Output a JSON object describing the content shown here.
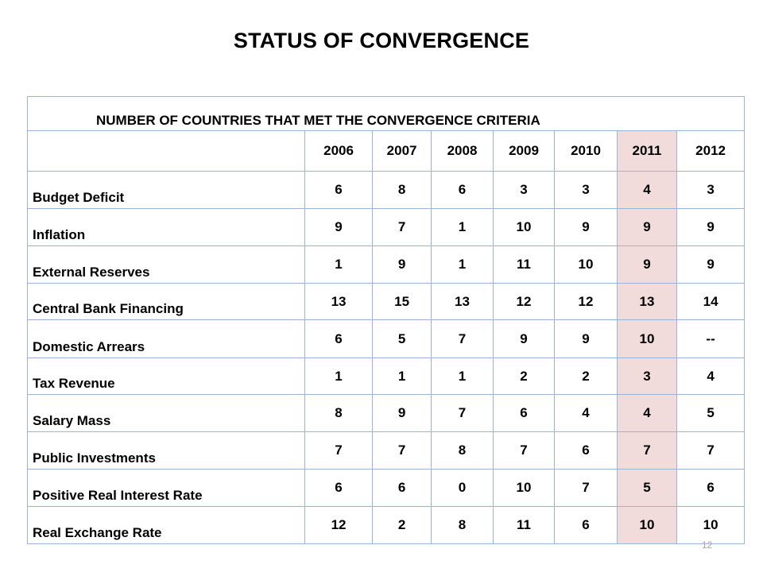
{
  "title": "STATUS OF CONVERGENCE",
  "table": {
    "caption": "NUMBER OF COUNTRIES THAT MET THE CONVERGENCE CRITERIA",
    "years": [
      "2006",
      "2007",
      "2008",
      "2009",
      "2010",
      "2011",
      "2012"
    ],
    "highlight_year": "2011",
    "highlight_color": "#f2dcdb",
    "border_color": "#9db3d6",
    "rows": [
      {
        "label": "Budget Deficit",
        "values": [
          "6",
          "8",
          "6",
          "3",
          "3",
          "4",
          "3"
        ]
      },
      {
        "label": "Inflation",
        "values": [
          "9",
          "7",
          "1",
          "10",
          "9",
          "9",
          "9"
        ]
      },
      {
        "label": "External Reserves",
        "values": [
          "1",
          "9",
          "1",
          "11",
          "10",
          "9",
          "9"
        ]
      },
      {
        "label": "Central Bank Financing",
        "values": [
          "13",
          "15",
          "13",
          "12",
          "12",
          "13",
          "14"
        ]
      },
      {
        "label": "Domestic Arrears",
        "values": [
          "6",
          "5",
          "7",
          "9",
          "9",
          "10",
          "--"
        ]
      },
      {
        "label": "Tax Revenue",
        "values": [
          "1",
          "1",
          "1",
          "2",
          "2",
          "3",
          "4"
        ]
      },
      {
        "label": "Salary Mass",
        "values": [
          "8",
          "9",
          "7",
          "6",
          "4",
          "4",
          "5"
        ]
      },
      {
        "label": "Public Investments",
        "values": [
          "7",
          "7",
          "8",
          "7",
          "6",
          "7",
          "7"
        ]
      },
      {
        "label": "Positive Real Interest Rate",
        "values": [
          "6",
          "6",
          "0",
          "10",
          "7",
          "5",
          "6"
        ]
      },
      {
        "label": "Real Exchange Rate",
        "values": [
          "12",
          "2",
          "8",
          "11",
          "6",
          "10",
          "10"
        ]
      }
    ]
  },
  "page_number": "12"
}
